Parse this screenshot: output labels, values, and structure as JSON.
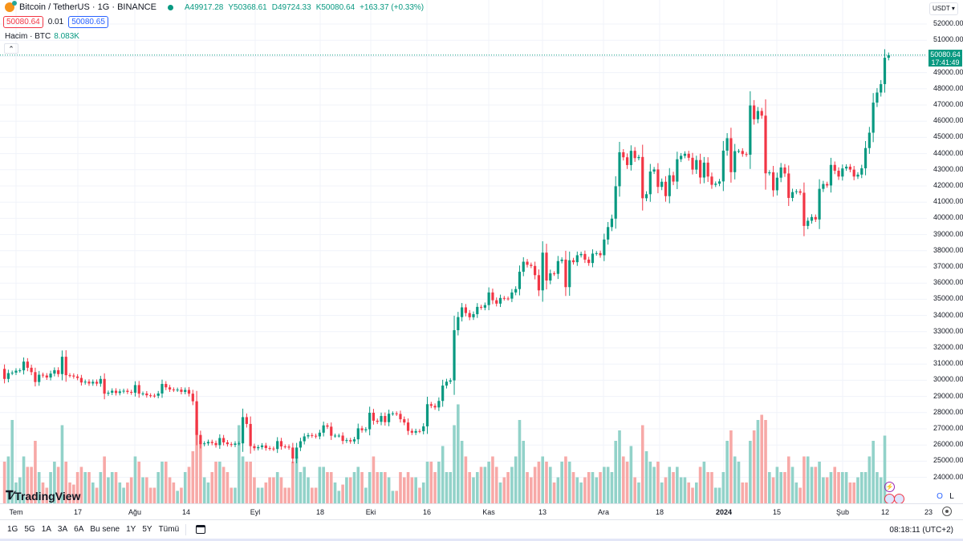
{
  "header": {
    "symbol": "Bitcoin / TetherUS · 1G · BINANCE",
    "open": "A49917.28",
    "high": "Y50368.61",
    "low": "D49724.33",
    "close": "K50080.64",
    "change": "+163.37 (+0.33%)",
    "sell_price": "50080.64",
    "spread": "0.01",
    "buy_price": "50080.65",
    "volume_label": "Hacim · BTC",
    "volume_value": "8.083K",
    "collapse_icon": "chevron-up-icon"
  },
  "price_axis": {
    "currency": "USDT",
    "current_price": "50080.64",
    "countdown": "17:41:49"
  },
  "time_axis": {
    "labels": [
      "Tem",
      "17",
      "Ağu",
      "14",
      "Eyl",
      "18",
      "Eki",
      "16",
      "Kas",
      "13",
      "Ara",
      "18",
      "2024",
      "15",
      "Şub",
      "12",
      "23"
    ]
  },
  "bottom_bar": {
    "ranges": [
      "1G",
      "5G",
      "1A",
      "3A",
      "6A",
      "Bu sene",
      "1Y",
      "5Y",
      "Tümü"
    ],
    "clock": "08:18:11 (UTC+2)"
  },
  "branding": "TradingView",
  "scale_buttons": {
    "o": "O",
    "l": "L"
  },
  "colors": {
    "up": "#089981",
    "down": "#f23645",
    "volume_up": "#92d2c9",
    "volume_down": "#f7a9a7"
  },
  "chart_data": {
    "type": "candlestick",
    "interval": "1 day",
    "x_range": [
      "2023-06-28",
      "2024-02-13"
    ],
    "ylim": [
      24000,
      52000
    ],
    "y_ticks": [
      24000,
      25000,
      26000,
      27000,
      28000,
      29000,
      30000,
      31000,
      32000,
      33000,
      34000,
      35000,
      36000,
      37000,
      38000,
      39000,
      40000,
      41000,
      42000,
      43000,
      44000,
      45000,
      46000,
      47000,
      48000,
      49000,
      50000,
      51000,
      52000
    ],
    "grid": true,
    "first_open": 30700,
    "close": [
      30080,
      30440,
      30470,
      30590,
      30610,
      31150,
      30770,
      30500,
      29890,
      30340,
      30290,
      30170,
      30410,
      30620,
      30380,
      31450,
      30310,
      30290,
      30230,
      30140,
      29860,
      29910,
      29800,
      29900,
      29790,
      30080,
      29170,
      29230,
      29350,
      29210,
      29310,
      29350,
      29280,
      29230,
      29700,
      29170,
      29180,
      29070,
      29050,
      29040,
      29180,
      29770,
      29560,
      29430,
      29400,
      29420,
      29280,
      29400,
      29170,
      28700,
      26620,
      26050,
      26100,
      26190,
      26120,
      25990,
      26430,
      26160,
      26050,
      26010,
      26090,
      26100,
      27720,
      27300,
      25930,
      25800,
      25870,
      25970,
      25810,
      25780,
      25750,
      26240,
      25910,
      25900,
      25840,
      25160,
      25840,
      26230,
      26530,
      26610,
      26570,
      26530,
      26760,
      27210,
      27130,
      26570,
      26580,
      26580,
      26250,
      26300,
      26220,
      26350,
      27030,
      26910,
      26970,
      27990,
      27500,
      27430,
      27790,
      27410,
      27930,
      27950,
      27920,
      27590,
      27390,
      26870,
      26760,
      26860,
      26850,
      27150,
      28520,
      28420,
      28320,
      28720,
      29670,
      29910,
      29990,
      33090,
      33900,
      34500,
      34150,
      33890,
      34080,
      34530,
      34480,
      34640,
      35420,
      34940,
      34730,
      35080,
      35050,
      35040,
      35420,
      35630,
      36700,
      37320,
      37130,
      37060,
      36490,
      35550,
      37880,
      36160,
      36600,
      36570,
      37360,
      37450,
      35750,
      37410,
      37290,
      37720,
      37800,
      37450,
      37240,
      37820,
      37850,
      37720,
      38690,
      39460,
      39980,
      41980,
      44080,
      43770,
      43290,
      44170,
      43720,
      43790,
      41240,
      41490,
      42890,
      43020,
      41940,
      42260,
      41370,
      42660,
      42270,
      43650,
      43860,
      43990,
      43740,
      43010,
      43600,
      42520,
      43440,
      42580,
      42070,
      42140,
      42280,
      44180,
      44950,
      42850,
      44150,
      44160,
      43970,
      43930,
      46970,
      46120,
      46630,
      46340,
      42780,
      42840,
      41730,
      42510,
      43140,
      42770,
      41260,
      41620,
      41670,
      41580,
      39530,
      39850,
      40080,
      39930,
      41820,
      42120,
      42030,
      43300,
      42940,
      42580,
      43080,
      43190,
      43010,
      42580,
      42700,
      43090,
      44340,
      45290,
      47150,
      47770,
      48290,
      49917.28,
      50080.64
    ],
    "volume_k_btc": [
      40,
      45,
      80,
      20,
      25,
      45,
      35,
      35,
      60,
      30,
      20,
      15,
      30,
      40,
      35,
      75,
      40,
      20,
      18,
      30,
      35,
      30,
      30,
      20,
      15,
      30,
      45,
      25,
      30,
      30,
      20,
      15,
      20,
      25,
      45,
      40,
      25,
      25,
      15,
      15,
      30,
      40,
      40,
      25,
      20,
      12,
      15,
      30,
      35,
      50,
      80,
      60,
      25,
      20,
      30,
      40,
      40,
      35,
      30,
      15,
      15,
      75,
      45,
      40,
      40,
      25,
      15,
      15,
      20,
      25,
      25,
      30,
      25,
      15,
      15,
      40,
      45,
      30,
      35,
      25,
      15,
      15,
      35,
      35,
      30,
      30,
      20,
      12,
      18,
      25,
      25,
      30,
      35,
      30,
      15,
      30,
      45,
      30,
      30,
      30,
      25,
      12,
      12,
      30,
      25,
      30,
      25,
      25,
      15,
      20,
      40,
      40,
      30,
      40,
      55,
      30,
      30,
      75,
      95,
      60,
      45,
      30,
      25,
      30,
      35,
      35,
      40,
      45,
      35,
      20,
      25,
      30,
      35,
      45,
      80,
      60,
      30,
      25,
      35,
      40,
      45,
      40,
      35,
      20,
      25,
      40,
      45,
      40,
      30,
      25,
      20,
      25,
      30,
      30,
      25,
      30,
      35,
      35,
      30,
      60,
      70,
      45,
      40,
      55,
      25,
      20,
      75,
      50,
      40,
      35,
      40,
      20,
      25,
      35,
      30,
      35,
      25,
      25,
      20,
      15,
      20,
      35,
      40,
      30,
      30,
      15,
      15,
      30,
      60,
      70,
      45,
      40,
      20,
      20,
      60,
      70,
      80,
      85,
      80,
      30,
      25,
      35,
      30,
      30,
      45,
      35,
      20,
      15,
      45,
      45,
      35,
      35,
      40,
      25,
      25,
      30,
      35,
      30,
      30,
      30,
      20,
      20,
      25,
      30,
      30,
      45,
      60,
      30,
      25,
      65,
      8.083
    ]
  }
}
